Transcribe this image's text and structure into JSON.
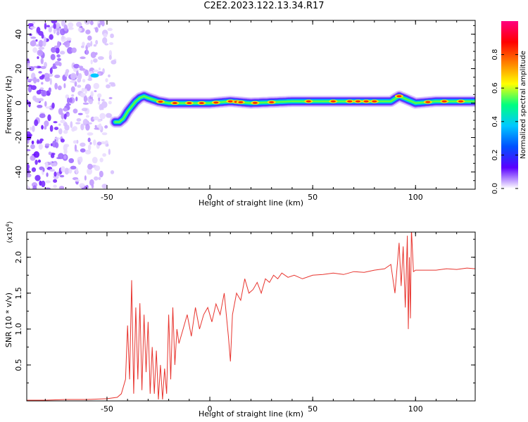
{
  "title": "C2E2.2023.122.13.34.R17",
  "chart_data": [
    {
      "type": "heatmap",
      "title": "C2E2.2023.122.13.34.R17",
      "xlabel": "Height of straight line (km)",
      "ylabel": "Frequency (Hz)",
      "xlim": [
        -89,
        129
      ],
      "ylim": [
        -50,
        48
      ],
      "x_ticks": [
        -50,
        0,
        50,
        100
      ],
      "y_ticks": [
        -40,
        -20,
        0,
        20,
        40
      ],
      "colorbar": {
        "label": "Normalized spectral amplitude",
        "range": [
          0.0,
          1.0
        ],
        "ticks": [
          0.0,
          0.2,
          0.4,
          0.6,
          0.8
        ],
        "colormap": [
          "#ffffff",
          "#5a00ff",
          "#0050ff",
          "#00c8ff",
          "#00ff80",
          "#ffff00",
          "#ff8000",
          "#ff0000",
          "#ff0080"
        ]
      },
      "ridge": {
        "x": [
          -46,
          -44,
          -42,
          -40,
          -38,
          -36,
          -34,
          -32,
          -30,
          -25,
          -20,
          -10,
          0,
          10,
          20,
          40,
          60,
          80,
          88,
          92,
          96,
          100,
          110,
          129
        ],
        "y": [
          -11,
          -11,
          -9,
          -5,
          -2,
          1,
          3,
          4,
          3,
          1,
          0,
          0,
          0,
          1,
          0,
          1,
          1,
          1,
          1,
          4,
          2,
          0,
          1,
          1
        ]
      },
      "noise_region_x": [
        -89,
        -46
      ],
      "legend": "none",
      "grid": false
    },
    {
      "type": "line",
      "xlabel": "Height of straight line (km)",
      "ylabel": "SNR (10 * v/v)",
      "multiplier_label": "(x10",
      "multiplier_exp": "4",
      "xlim": [
        -89,
        129
      ],
      "ylim": [
        0,
        2.35
      ],
      "x_ticks": [
        -50,
        0,
        50,
        100
      ],
      "y_ticks": [
        0.5,
        1.0,
        1.5,
        2.0
      ],
      "line_color": "#e8342e",
      "series": [
        {
          "x": [
            -89,
            -80,
            -70,
            -60,
            -50,
            -45,
            -43,
            -41,
            -40,
            -39,
            -38,
            -37,
            -36,
            -35,
            -34,
            -33,
            -32,
            -31,
            -30,
            -29,
            -28,
            -27,
            -26,
            -25,
            -24,
            -23,
            -22,
            -21,
            -20,
            -19,
            -18,
            -17,
            -16,
            -15,
            -13,
            -11,
            -9,
            -7,
            -5,
            -3,
            -1,
            1,
            3,
            5,
            7,
            9,
            10,
            11,
            13,
            15,
            17,
            19,
            21,
            23,
            25,
            27,
            29,
            31,
            33,
            35,
            38,
            41,
            45,
            50,
            55,
            60,
            65,
            70,
            75,
            80,
            85,
            88,
            90,
            92,
            93,
            94,
            95,
            96,
            96.5,
            97,
            97.5,
            98,
            99,
            100,
            105,
            110,
            115,
            120,
            125,
            129
          ],
          "y": [
            0.01,
            0.01,
            0.02,
            0.02,
            0.03,
            0.05,
            0.1,
            0.3,
            1.05,
            0.3,
            1.68,
            0.1,
            1.3,
            0.3,
            1.36,
            0.15,
            1.2,
            0.4,
            1.1,
            0.1,
            0.75,
            0.1,
            0.7,
            0.02,
            0.5,
            0.02,
            0.45,
            0.1,
            1.2,
            0.3,
            1.3,
            0.5,
            1.0,
            0.8,
            1.0,
            1.2,
            0.9,
            1.3,
            1.0,
            1.2,
            1.3,
            1.1,
            1.35,
            1.2,
            1.5,
            0.9,
            0.55,
            1.2,
            1.5,
            1.4,
            1.7,
            1.5,
            1.55,
            1.65,
            1.5,
            1.7,
            1.65,
            1.75,
            1.7,
            1.78,
            1.72,
            1.75,
            1.7,
            1.75,
            1.76,
            1.78,
            1.76,
            1.8,
            1.79,
            1.82,
            1.84,
            1.9,
            1.5,
            2.2,
            1.6,
            2.15,
            1.3,
            2.3,
            1.0,
            2.0,
            1.15,
            2.4,
            1.8,
            1.82,
            1.82,
            1.82,
            1.84,
            1.83,
            1.85,
            1.84
          ]
        }
      ],
      "legend": "none",
      "grid": false
    }
  ]
}
